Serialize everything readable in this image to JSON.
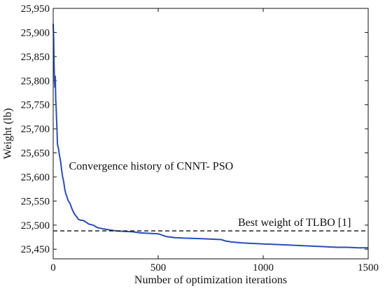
{
  "chart_data": {
    "type": "line",
    "xlabel": "Number of optimization iterations",
    "ylabel": "Weight (lb)",
    "xlim": [
      0,
      1500
    ],
    "ylim": [
      25430,
      25950
    ],
    "x_ticks": [
      0,
      500,
      1000,
      1500
    ],
    "x_tick_labels": [
      "0",
      "500",
      "1000",
      "1500"
    ],
    "y_ticks": [
      25450,
      25500,
      25550,
      25600,
      25650,
      25700,
      25750,
      25800,
      25850,
      25900,
      25950
    ],
    "y_tick_labels": [
      "25,450",
      "25,500",
      "25,550",
      "25,600",
      "25,650",
      "25,700",
      "25,750",
      "25,800",
      "25,850",
      "25,900",
      "25,950"
    ],
    "grid": false,
    "series": [
      {
        "name": "Convergence history of CNNT-PSO",
        "color": "#2a4db5",
        "x": [
          0,
          2,
          4,
          6,
          8,
          10,
          12,
          14,
          16,
          18,
          20,
          22,
          25,
          28,
          32,
          36,
          40,
          45,
          50,
          55,
          60,
          65,
          70,
          80,
          90,
          100,
          110,
          120,
          130,
          140,
          150,
          170,
          190,
          210,
          240,
          270,
          300,
          340,
          380,
          410,
          450,
          500,
          540,
          580,
          620,
          700,
          800,
          820,
          850,
          900,
          1000,
          1100,
          1200,
          1300,
          1350,
          1400,
          1450,
          1500
        ],
        "y": [
          25918,
          25890,
          25840,
          25800,
          25785,
          25810,
          25760,
          25745,
          25720,
          25700,
          25670,
          25664,
          25660,
          25650,
          25640,
          25630,
          25615,
          25600,
          25590,
          25575,
          25565,
          25560,
          25552,
          25545,
          25533,
          25524,
          25518,
          25512,
          25510,
          25510,
          25508,
          25502,
          25500,
          25495,
          25492,
          25490,
          25488,
          25487,
          25486,
          25484,
          25483,
          25482,
          25476,
          25474,
          25473,
          25472,
          25470,
          25467,
          25465,
          25463,
          25461,
          25459,
          25457,
          25455,
          25454,
          25454,
          25453,
          25453
        ]
      },
      {
        "name": "Best weight of TLBO [1]",
        "color": "#111111",
        "style": "dashed",
        "x": [
          0,
          1500
        ],
        "y": [
          25488,
          25488
        ]
      }
    ],
    "annotations": [
      {
        "text": "Convergence history of CNNT- PSO",
        "x": 75,
        "y": 25615
      },
      {
        "text": "Best weight of TLBO [1]",
        "x": 880,
        "y": 25498
      }
    ]
  }
}
